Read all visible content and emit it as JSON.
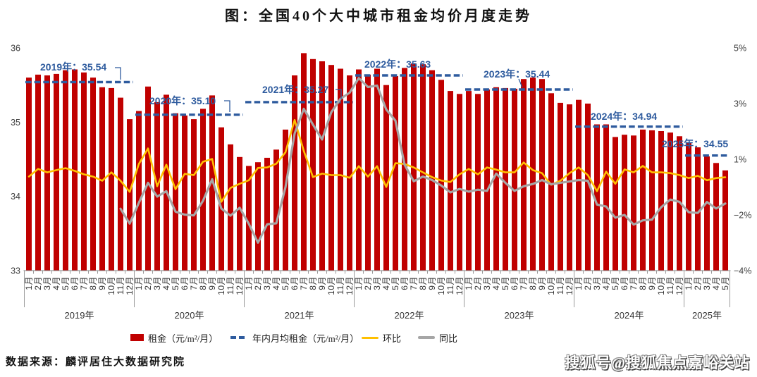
{
  "title": "图：全国40个大中城市租金均价月度走势",
  "source_note": "数据来源：麟评居住大数据研究院",
  "watermark": "搜狐号@搜狐焦点嘉峪关站",
  "colors": {
    "bar": "#C00000",
    "avg": "#2E5B9E",
    "mom": "#FFC000",
    "yoy": "#A6A6A6"
  },
  "legend": {
    "items": [
      {
        "label": "租金（元/m²/月）",
        "swatch": "bar",
        "color": "#C00000"
      },
      {
        "label": "年内月均租金（元/m²/月）",
        "swatch": "dashes",
        "color": "#2E5B9E"
      },
      {
        "label": "环比",
        "swatch": "line",
        "color": "#FFC000"
      },
      {
        "label": "同比",
        "swatch": "line",
        "color": "#A6A6A6"
      }
    ]
  },
  "chart_data": {
    "type": "bar+line",
    "title": "图：全国40个大中城市租金均价月度走势",
    "left_axis": {
      "min": 33,
      "max": 36,
      "ticks": [
        36,
        35,
        34,
        33
      ]
    },
    "right_axis": {
      "tick_labels": [
        "5%",
        "3%",
        "1%",
        "−2%",
        "−4%"
      ],
      "top_value": 5,
      "bottom_value": -4
    },
    "month_suffix": "月",
    "years": [
      {
        "label": "2019年",
        "year": "2019",
        "months": 12,
        "avg": 35.54,
        "avg_label": "2019年：35.54"
      },
      {
        "label": "2020年",
        "year": "2020",
        "months": 12,
        "avg": 35.1,
        "avg_label": "2020年：35.10"
      },
      {
        "label": "2021年",
        "year": "2021",
        "months": 12,
        "avg": 35.27,
        "avg_label": "2021年：35.27"
      },
      {
        "label": "2022年",
        "year": "2022",
        "months": 12,
        "avg": 35.63,
        "avg_label": "2022年：35.63"
      },
      {
        "label": "2023年",
        "year": "2023",
        "months": 12,
        "avg": 35.44,
        "avg_label": "2023年：35.44"
      },
      {
        "label": "2024年",
        "year": "2024",
        "months": 12,
        "avg": 34.94,
        "avg_label": "2024年：34.94"
      },
      {
        "label": "2025年",
        "year": "2025",
        "months": 5,
        "avg": 34.55,
        "avg_label": "2025年：34.55"
      }
    ],
    "series": {
      "rent": {
        "name": "租金（元/m²/月）",
        "type": "bar",
        "axis": "left",
        "color": "#C00000",
        "values": [
          35.6,
          35.64,
          35.63,
          35.65,
          35.7,
          35.71,
          35.67,
          35.6,
          35.47,
          35.46,
          35.33,
          35.04,
          35.15,
          35.48,
          35.27,
          35.37,
          35.12,
          35.09,
          35.04,
          35.18,
          35.36,
          34.93,
          34.7,
          34.53,
          34.41,
          34.46,
          34.52,
          34.63,
          34.9,
          35.63,
          35.93,
          35.85,
          35.82,
          35.77,
          35.72,
          35.63,
          35.71,
          35.64,
          35.72,
          35.5,
          35.62,
          35.73,
          35.79,
          35.78,
          35.7,
          35.57,
          35.42,
          35.38,
          35.42,
          35.38,
          35.44,
          35.47,
          35.46,
          35.45,
          35.58,
          35.6,
          35.58,
          35.39,
          35.26,
          35.24,
          35.3,
          35.25,
          34.97,
          34.97,
          34.8,
          34.83,
          34.82,
          34.9,
          34.89,
          34.88,
          34.86,
          34.81,
          34.72,
          34.66,
          34.54,
          34.45,
          34.35
        ]
      },
      "avg": {
        "name": "年内月均租金（元/m²/月）",
        "type": "dashed-year-average",
        "axis": "left",
        "color": "#2E5B9E"
      },
      "mom": {
        "name": "环比",
        "type": "line",
        "axis": "right",
        "color": "#FFC000",
        "values": [
          -0.2,
          0.11,
          -0.03,
          0.06,
          0.14,
          0.03,
          -0.11,
          -0.2,
          -0.37,
          -0.03,
          -0.37,
          -0.82,
          0.31,
          0.94,
          -0.59,
          0.28,
          -0.71,
          -0.09,
          -0.14,
          0.4,
          0.51,
          -1.22,
          -0.66,
          -0.49,
          -0.35,
          0.15,
          0.17,
          0.32,
          0.78,
          2.09,
          0.84,
          -0.22,
          -0.08,
          -0.14,
          -0.14,
          -0.25,
          0.22,
          -0.2,
          0.22,
          -0.62,
          0.34,
          0.31,
          0.17,
          -0.03,
          -0.22,
          -0.36,
          -0.42,
          -0.11,
          0.11,
          -0.11,
          0.17,
          0.08,
          -0.03,
          -0.03,
          0.37,
          0.06,
          -0.06,
          -0.53,
          -0.37,
          -0.06,
          0.17,
          -0.14,
          -0.79,
          0.0,
          -0.49,
          0.09,
          -0.03,
          0.23,
          -0.03,
          -0.03,
          -0.06,
          -0.14,
          -0.26,
          -0.17,
          -0.35,
          -0.26,
          -0.23
        ]
      },
      "yoy": {
        "name": "同比",
        "type": "line",
        "axis": "right",
        "color": "#A6A6A6",
        "values": [
          null,
          null,
          null,
          null,
          null,
          null,
          null,
          null,
          null,
          null,
          -1.5,
          -2.1,
          -1.26,
          -0.45,
          -1.01,
          -0.79,
          -1.62,
          -1.74,
          -1.77,
          -1.18,
          -0.31,
          -1.49,
          -1.78,
          -1.46,
          -2.11,
          -2.87,
          -2.13,
          -2.09,
          -0.63,
          1.54,
          2.54,
          1.9,
          1.3,
          2.4,
          2.94,
          3.19,
          3.78,
          3.42,
          3.48,
          2.51,
          2.06,
          0.28,
          -0.39,
          -0.2,
          -0.34,
          -0.56,
          -0.84,
          -0.7,
          -0.81,
          -0.73,
          -0.78,
          -0.08,
          -0.45,
          -0.78,
          -0.59,
          -0.5,
          -0.34,
          -0.51,
          -0.45,
          -0.4,
          -0.34,
          -0.37,
          -1.33,
          -1.41,
          -1.86,
          -1.75,
          -2.14,
          -1.97,
          -1.94,
          -1.44,
          -1.13,
          -1.22,
          -1.64,
          -1.67,
          -1.23,
          -1.49,
          -1.29
        ]
      }
    }
  }
}
